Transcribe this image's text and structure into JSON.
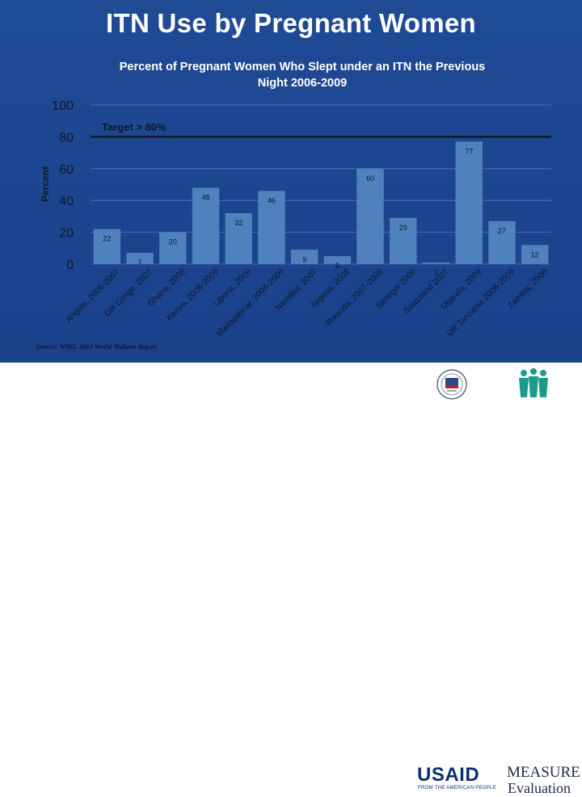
{
  "slide": {
    "title": "ITN Use by Pregnant Women"
  },
  "chart_data": {
    "type": "bar",
    "title": "Percent of Pregnant Women Who Slept under an ITN the Previous Night 2006-2009",
    "title_lines": [
      "Percent of Pregnant Women Who Slept under an ITN the Previous",
      "Night 2006-2009"
    ],
    "ylabel": "Percent",
    "xlabel": "",
    "ylim": [
      0,
      100
    ],
    "yticks": [
      0,
      20,
      40,
      60,
      80,
      100
    ],
    "grid": true,
    "target": {
      "value": 80,
      "label": "Target > 80%"
    },
    "categories": [
      "Angola, 2006-2007",
      "DR Congo, 2007",
      "Ghana, 2008",
      "Kenya, 2008-2009",
      "Liberia, 2009",
      "Madagascar, 2008-2009",
      "Namibia, 2007",
      "Nigeria, 2008",
      "Rwanda, 2007-2008",
      "Senegal 2009",
      "Swaziland 2007",
      "Uganda, 2009",
      "UR Tanzania 2008-2009",
      "Zambia, 2008"
    ],
    "values": [
      22,
      7,
      20,
      48,
      32,
      46,
      9,
      5,
      60,
      29,
      1,
      77,
      27,
      12
    ],
    "bar_color": "#4f81bd",
    "source": "Source: WHO, 2010 World Malaria Report"
  },
  "logos": {
    "usaid_name": "USAID",
    "usaid_tagline": "FROM THE AMERICAN PEOPLE",
    "measure_name": "MEASURE",
    "evaluation_name": "Evaluation"
  }
}
